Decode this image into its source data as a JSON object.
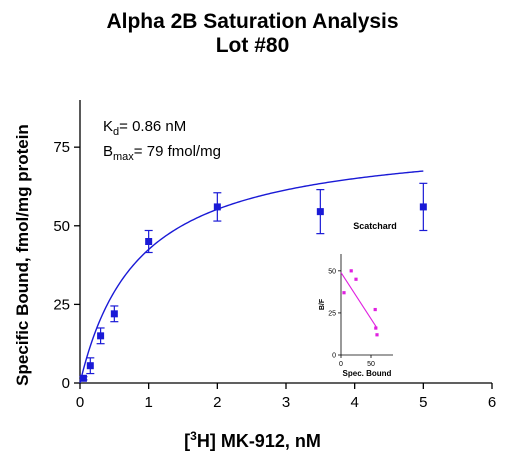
{
  "title_line1": "Alpha 2B Saturation Analysis",
  "title_line2": "Lot #80",
  "colors": {
    "main_series": "#1a1ad6",
    "inset_series": "#e020e0",
    "axis": "#000000"
  },
  "parameters": {
    "kd_symbol": "K",
    "kd_subscript": "d",
    "kd_value": "=  0.86 nM",
    "bmax_symbol": "B",
    "bmax_subscript": "max",
    "bmax_value": "=  79 fmol/mg"
  },
  "chart_data": [
    {
      "type": "scatter",
      "title": "Alpha 2B Saturation Analysis Lot #80",
      "xlabel_prefix": "[",
      "xlabel_sup": "3",
      "xlabel_rest": "H] MK-912, nM",
      "ylabel": "Specific Bound, fmol/mg protein",
      "xlim": [
        0,
        6
      ],
      "ylim": [
        0,
        90
      ],
      "xticks": [
        "0",
        "1",
        "2",
        "3",
        "4",
        "5",
        "6"
      ],
      "yticks": [
        "0",
        "25",
        "50",
        "75"
      ],
      "ytick_values": [
        0,
        25,
        50,
        75
      ],
      "series": [
        {
          "x": [
            0.05,
            0.15,
            0.3,
            0.5,
            1.0,
            2.0,
            3.5,
            5.0
          ],
          "y": [
            1.5,
            5.5,
            15,
            22,
            45,
            56,
            54.5,
            56
          ],
          "error": [
            0.5,
            2.5,
            2.5,
            2.5,
            3.5,
            4.5,
            7,
            7.5
          ]
        }
      ],
      "fit": {
        "model": "one-site saturation",
        "bmax": 79,
        "kd": 0.86
      }
    },
    {
      "type": "scatter",
      "title": "Scatchard",
      "xlabel": "Spec. Bound",
      "ylabel": "B/F",
      "xlim": [
        0,
        80
      ],
      "ylim": [
        0,
        60
      ],
      "xticks": [
        "0",
        "50"
      ],
      "yticks": [
        "0",
        "25",
        "50"
      ],
      "x": [
        5,
        17,
        25,
        57,
        58,
        60
      ],
      "y": [
        37,
        50,
        45,
        27,
        16,
        12
      ],
      "fit_line": {
        "x": [
          0,
          60
        ],
        "y": [
          49,
          16
        ]
      }
    }
  ]
}
